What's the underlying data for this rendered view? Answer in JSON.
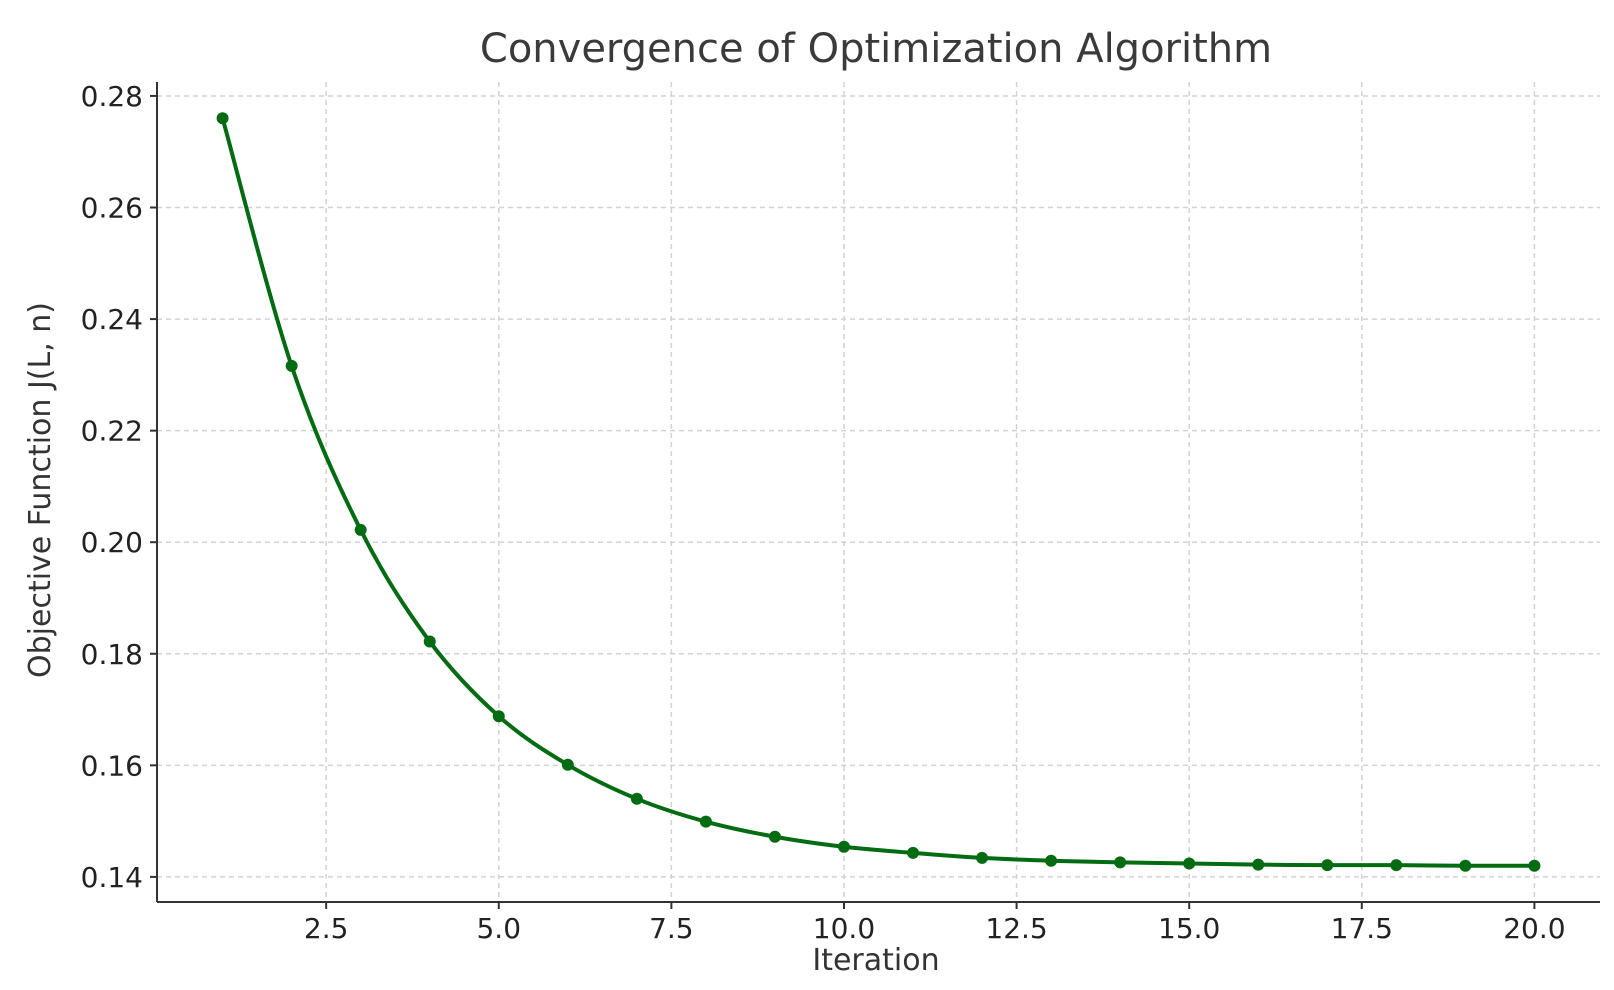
{
  "chart_data": {
    "type": "line",
    "title": "Convergence of Optimization Algorithm",
    "xlabel": "Iteration",
    "ylabel": "Objective Function J(L, n)",
    "xlim": [
      0.05,
      20.95
    ],
    "ylim": [
      0.1355,
      0.2825
    ],
    "grid": true,
    "colors": {
      "line": "#036b12",
      "marker": "#036b12",
      "grid": "#d2d2d2",
      "axis": "#333333"
    },
    "x_ticks": [
      2.5,
      5.0,
      7.5,
      10.0,
      12.5,
      15.0,
      17.5,
      20.0
    ],
    "x_tick_labels": [
      "2.5",
      "5.0",
      "7.5",
      "10.0",
      "12.5",
      "15.0",
      "17.5",
      "20.0"
    ],
    "y_ticks": [
      0.14,
      0.16,
      0.18,
      0.2,
      0.22,
      0.24,
      0.26,
      0.28
    ],
    "y_tick_labels": [
      "0.14",
      "0.16",
      "0.18",
      "0.20",
      "0.22",
      "0.24",
      "0.26",
      "0.28"
    ],
    "series": [
      {
        "x": [
          1,
          2,
          3,
          4,
          5,
          6,
          7,
          8,
          9,
          10,
          11,
          12,
          13,
          14,
          15,
          16,
          17,
          18,
          19,
          20
        ],
        "values": [
          0.276,
          0.2316,
          0.2022,
          0.1822,
          0.1688,
          0.1601,
          0.154,
          0.1499,
          0.1472,
          0.1454,
          0.1443,
          0.1434,
          0.1429,
          0.1426,
          0.1424,
          0.1422,
          0.1421,
          0.1421,
          0.142,
          0.142
        ]
      }
    ]
  }
}
